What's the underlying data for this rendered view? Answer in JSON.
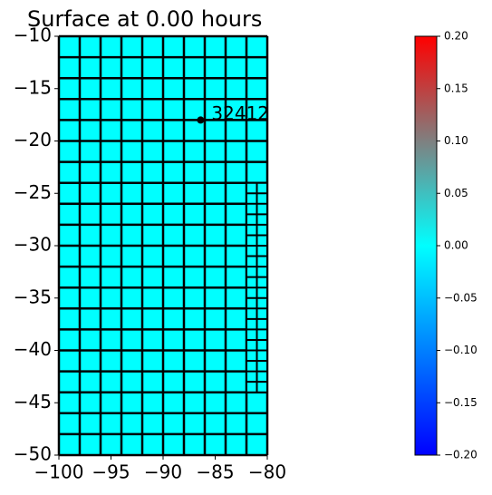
{
  "chart_data": {
    "type": "mesh",
    "title": "Surface at 0.00 hours",
    "xlim": [
      -100,
      -80
    ],
    "xticks": [
      {
        "value": -100,
        "label": "−100"
      },
      {
        "value": -95,
        "label": "−95"
      },
      {
        "value": -90,
        "label": "−90"
      },
      {
        "value": -85,
        "label": "−85"
      },
      {
        "value": -80,
        "label": "−80"
      }
    ],
    "ylim": [
      -50,
      -10
    ],
    "yticks": [
      {
        "value": -50,
        "label": "−50"
      },
      {
        "value": -45,
        "label": "−45"
      },
      {
        "value": -40,
        "label": "−40"
      },
      {
        "value": -35,
        "label": "−35"
      },
      {
        "value": -30,
        "label": "−30"
      },
      {
        "value": -25,
        "label": "−25"
      },
      {
        "value": -20,
        "label": "−20"
      },
      {
        "value": -15,
        "label": "−15"
      },
      {
        "value": -10,
        "label": "−10"
      }
    ],
    "value": 0,
    "patches": [
      {
        "x": [
          -100,
          -80
        ],
        "y": [
          -50,
          -10
        ],
        "dx": 2,
        "dy": 2
      },
      {
        "x": [
          -82,
          -80
        ],
        "y": [
          -44,
          -24
        ],
        "dx": 1,
        "dy": 1
      }
    ],
    "gauges": [
      {
        "label": "32412",
        "x": -86.4,
        "y": -18
      }
    ],
    "clim": [
      -0.2,
      0.2
    ],
    "colormap": [
      "#0000ff",
      "#00ffff",
      "#ff0000"
    ],
    "cticks": [
      {
        "value": -0.2,
        "label": "−0.20"
      },
      {
        "value": -0.15,
        "label": "−0.15"
      },
      {
        "value": -0.1,
        "label": "−0.10"
      },
      {
        "value": -0.05,
        "label": "−0.05"
      },
      {
        "value": 0,
        "label": "0.00"
      },
      {
        "value": 0.05,
        "label": "0.05"
      },
      {
        "value": 0.1,
        "label": "0.10"
      },
      {
        "value": 0.15,
        "label": "0.15"
      },
      {
        "value": 0.2,
        "label": "0.20"
      }
    ]
  }
}
